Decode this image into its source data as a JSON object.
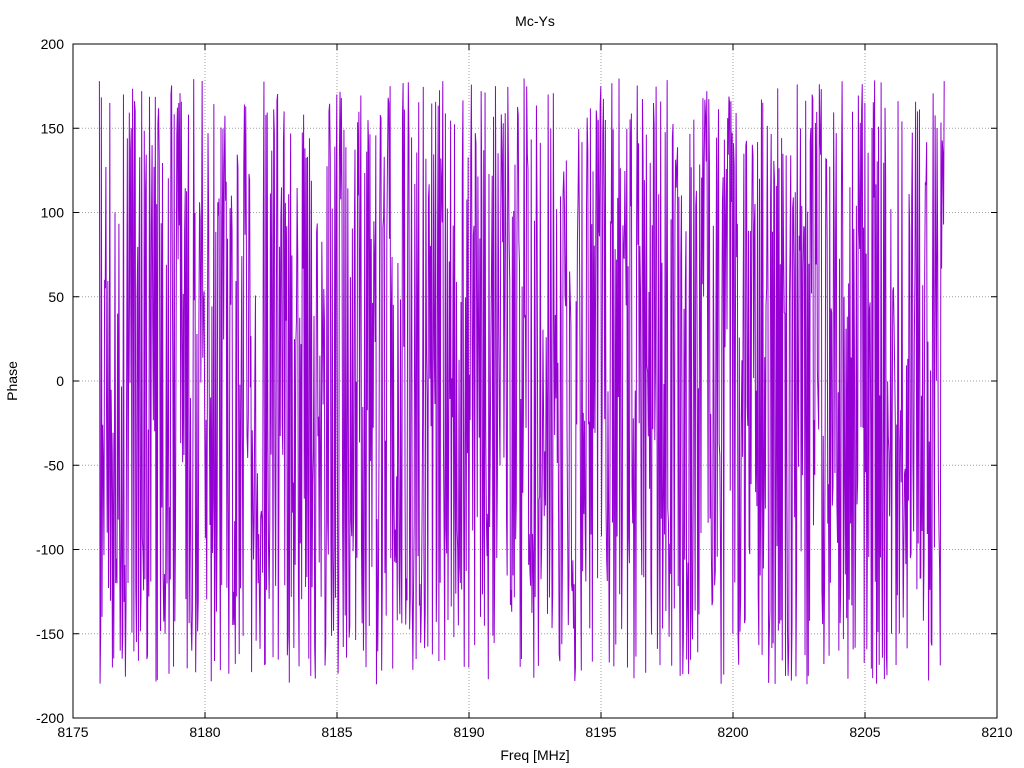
{
  "chart_data": {
    "type": "line",
    "title": "Mc-Ys",
    "xlabel": "Freq [MHz]",
    "ylabel": "Phase",
    "xlim": [
      8175,
      8210
    ],
    "ylim": [
      -200,
      200
    ],
    "xticks": [
      8175,
      8180,
      8185,
      8190,
      8195,
      8200,
      8205,
      8210
    ],
    "yticks": [
      -200,
      -150,
      -100,
      -50,
      0,
      50,
      100,
      150,
      200
    ],
    "grid": true,
    "legend": "none",
    "series_color": "#9400d3",
    "x_start": 8176,
    "x_end": 8208,
    "series_description_values": {
      "x_range": [
        8176,
        8208
      ],
      "y_range": [
        -180,
        180
      ],
      "n_points": 1300
    },
    "series": [
      {
        "values_sample": [
          [
            8176.0,
            178
          ],
          [
            8176.1,
            -140
          ],
          [
            8176.2,
            60
          ],
          [
            8176.3,
            -90
          ],
          [
            8176.4,
            165
          ],
          [
            8176.5,
            -170
          ],
          [
            8176.6,
            100
          ],
          [
            8176.7,
            40
          ],
          [
            8176.8,
            -160
          ],
          [
            8176.9,
            170
          ],
          [
            8177.0,
            -130
          ],
          [
            8177.2,
            150
          ],
          [
            8177.4,
            -155
          ],
          [
            8177.6,
            172
          ],
          [
            8177.8,
            -165
          ],
          [
            8178.0,
            140
          ],
          [
            8178.5,
            -150
          ],
          [
            8179.0,
            165
          ],
          [
            8179.5,
            -160
          ],
          [
            8180.0,
            -30
          ],
          [
            8181.0,
            110
          ],
          [
            8182.0,
            -120
          ],
          [
            8183.0,
            160
          ],
          [
            8184.0,
            -175
          ],
          [
            8185.0,
            170
          ],
          [
            8186.0,
            -160
          ],
          [
            8186.5,
            -180
          ],
          [
            8187.0,
            175
          ],
          [
            8188.0,
            -165
          ],
          [
            8189.0,
            178
          ],
          [
            8190.0,
            -170
          ],
          [
            8191.0,
            175
          ],
          [
            8192.0,
            -165
          ],
          [
            8193.0,
            170
          ],
          [
            8194.0,
            -178
          ],
          [
            8195.0,
            175
          ],
          [
            8196.0,
            -170
          ],
          [
            8197.0,
            165
          ],
          [
            8198.0,
            -175
          ],
          [
            8199.0,
            172
          ],
          [
            8200.0,
            -150
          ],
          [
            8201.0,
            120
          ],
          [
            8202.0,
            -175
          ],
          [
            8203.0,
            170
          ],
          [
            8204.0,
            -160
          ],
          [
            8205.0,
            165
          ],
          [
            8206.0,
            -150
          ],
          [
            8207.0,
            160
          ],
          [
            8207.5,
            -155
          ],
          [
            8208.0,
            178
          ]
        ]
      }
    ]
  }
}
